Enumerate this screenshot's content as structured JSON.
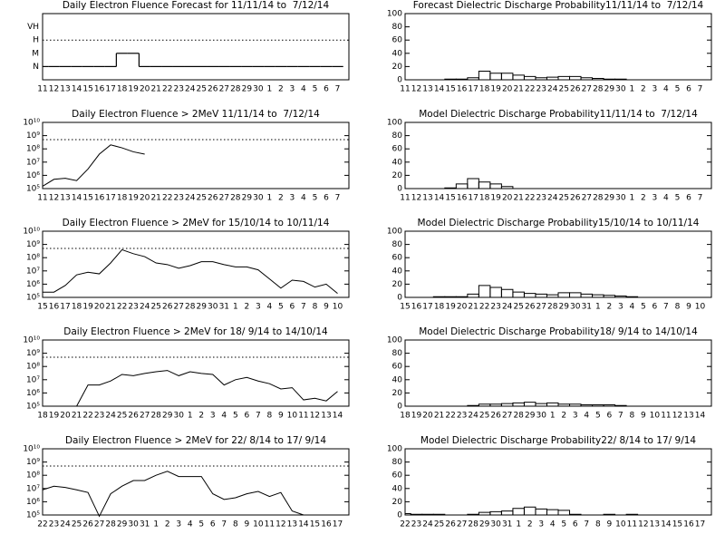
{
  "chart_data": [
    {
      "type": "level-step",
      "title": "Daily Electron Fluence Forecast for 11/11/14 to  7/12/14",
      "categories": [
        "11",
        "12",
        "13",
        "14",
        "15",
        "16",
        "17",
        "18",
        "19",
        "20",
        "21",
        "22",
        "23",
        "24",
        "25",
        "26",
        "27",
        "28",
        "29",
        "30",
        "1",
        "2",
        "3",
        "4",
        "5",
        "6",
        "7"
      ],
      "levels": [
        "N",
        "M",
        "H",
        "VH"
      ],
      "threshold": "H",
      "values": [
        "N",
        "N",
        "N",
        "N",
        "N",
        "N",
        "N",
        "M",
        "M",
        "N",
        "N",
        "N",
        "N",
        "N",
        "N",
        "N",
        "N",
        "N",
        "N",
        "N",
        "N",
        "N",
        "N",
        "N",
        "N",
        "N",
        "N"
      ]
    },
    {
      "type": "histogram",
      "title": "Forecast Dielectric Discharge Probability11/11/14 to  7/12/14",
      "categories": [
        "11",
        "12",
        "13",
        "14",
        "15",
        "16",
        "17",
        "18",
        "19",
        "20",
        "21",
        "22",
        "23",
        "24",
        "25",
        "26",
        "27",
        "28",
        "29",
        "30",
        "1",
        "2",
        "3",
        "4",
        "5",
        "6",
        "7"
      ],
      "values": [
        0,
        0,
        0,
        0,
        1,
        1,
        3,
        13,
        10,
        10,
        7,
        5,
        3,
        4,
        5,
        5,
        3,
        2,
        1,
        1,
        0,
        0,
        0,
        0,
        0,
        0,
        0
      ],
      "ylim": [
        0,
        100
      ],
      "yticks": [
        0,
        20,
        40,
        60,
        80,
        100
      ]
    },
    {
      "type": "line",
      "title": "Daily Electron Fluence > 2MeV 11/11/14 to  7/12/14",
      "log": true,
      "threshold": 500000000,
      "categories": [
        "11",
        "12",
        "13",
        "14",
        "15",
        "16",
        "17",
        "18",
        "19",
        "20",
        "21",
        "22",
        "23",
        "24",
        "25",
        "26",
        "27",
        "28",
        "29",
        "30",
        "1",
        "2",
        "3",
        "4",
        "5",
        "6",
        "7"
      ],
      "values": [
        150000,
        500000,
        600000,
        400000,
        3000000,
        40000000,
        200000000,
        120000000,
        60000000,
        40000000,
        null,
        null,
        null,
        null,
        null,
        null,
        null,
        null,
        null,
        null,
        null,
        null,
        null,
        null,
        null,
        null,
        null
      ],
      "ylim": [
        100000,
        10000000000
      ],
      "yticks": [
        {
          "value": 100000,
          "label": "10⁵"
        },
        {
          "value": 1000000,
          "label": "10⁶"
        },
        {
          "value": 10000000,
          "label": "10⁷"
        },
        {
          "value": 100000000,
          "label": "10⁸"
        },
        {
          "value": 1000000000,
          "label": "10⁹"
        },
        {
          "value": 10000000000,
          "label": "10¹⁰"
        }
      ]
    },
    {
      "type": "histogram",
      "title": "Model Dielectric Discharge Probability11/11/14 to  7/12/14",
      "categories": [
        "11",
        "12",
        "13",
        "14",
        "15",
        "16",
        "17",
        "18",
        "19",
        "20",
        "21",
        "22",
        "23",
        "24",
        "25",
        "26",
        "27",
        "28",
        "29",
        "30",
        "1",
        "2",
        "3",
        "4",
        "5",
        "6",
        "7"
      ],
      "values": [
        0,
        0,
        0,
        0,
        1,
        7,
        15,
        10,
        7,
        3,
        0,
        0,
        0,
        0,
        0,
        0,
        0,
        0,
        0,
        0,
        0,
        0,
        0,
        0,
        0,
        0,
        0
      ],
      "ylim": [
        0,
        100
      ],
      "yticks": [
        0,
        20,
        40,
        60,
        80,
        100
      ]
    },
    {
      "type": "line",
      "title": "Daily Electron Fluence > 2MeV for 15/10/14 to 10/11/14",
      "log": true,
      "threshold": 500000000,
      "categories": [
        "15",
        "16",
        "17",
        "18",
        "19",
        "20",
        "21",
        "22",
        "23",
        "24",
        "25",
        "26",
        "27",
        "28",
        "29",
        "30",
        "31",
        "1",
        "2",
        "3",
        "4",
        "5",
        "6",
        "7",
        "8",
        "9",
        "10"
      ],
      "values": [
        250000,
        250000,
        800000,
        5000000,
        8000000,
        6000000,
        40000000,
        400000000,
        200000000,
        120000000,
        40000000,
        30000000,
        16000000,
        25000000,
        50000000,
        50000000,
        30000000,
        20000000,
        20000000,
        12000000,
        2500000,
        500000,
        2000000,
        1600000,
        600000,
        1000000,
        200000
      ],
      "ylim": [
        100000,
        10000000000
      ],
      "yticks": [
        {
          "value": 100000,
          "label": "10⁵"
        },
        {
          "value": 1000000,
          "label": "10⁶"
        },
        {
          "value": 10000000,
          "label": "10⁷"
        },
        {
          "value": 100000000,
          "label": "10⁸"
        },
        {
          "value": 1000000000,
          "label": "10⁹"
        },
        {
          "value": 10000000000,
          "label": "10¹⁰"
        }
      ]
    },
    {
      "type": "histogram",
      "title": "Model Dielectric Discharge Probability15/10/14 to 10/11/14",
      "categories": [
        "15",
        "16",
        "17",
        "18",
        "19",
        "20",
        "21",
        "22",
        "23",
        "24",
        "25",
        "26",
        "27",
        "28",
        "29",
        "30",
        "31",
        "1",
        "2",
        "3",
        "4",
        "5",
        "6",
        "7",
        "8",
        "9",
        "10"
      ],
      "values": [
        0,
        0,
        0,
        1,
        1,
        1,
        5,
        18,
        15,
        12,
        8,
        6,
        5,
        4,
        7,
        7,
        5,
        4,
        3,
        2,
        1,
        0,
        0,
        0,
        0,
        0,
        0
      ],
      "ylim": [
        0,
        100
      ],
      "yticks": [
        0,
        20,
        40,
        60,
        80,
        100
      ]
    },
    {
      "type": "line",
      "title": "Daily Electron Fluence > 2MeV for 18/ 9/14 to 14/10/14",
      "log": true,
      "threshold": 500000000,
      "categories": [
        "18",
        "19",
        "20",
        "21",
        "22",
        "23",
        "24",
        "25",
        "26",
        "27",
        "28",
        "29",
        "30",
        "1",
        "2",
        "3",
        "4",
        "5",
        "6",
        "7",
        "8",
        "9",
        "10",
        "11",
        "12",
        "13",
        "14"
      ],
      "values": [
        null,
        null,
        null,
        100000,
        4000000,
        4000000,
        8000000,
        25000000,
        20000000,
        30000000,
        40000000,
        50000000,
        20000000,
        40000000,
        30000000,
        25000000,
        4000000,
        10000000,
        15000000,
        8000000,
        5000000,
        2000000,
        2500000,
        300000,
        400000,
        250000,
        1300000
      ],
      "ylim": [
        100000,
        10000000000
      ],
      "yticks": [
        {
          "value": 100000,
          "label": "10⁵"
        },
        {
          "value": 1000000,
          "label": "10⁶"
        },
        {
          "value": 10000000,
          "label": "10⁷"
        },
        {
          "value": 100000000,
          "label": "10⁸"
        },
        {
          "value": 1000000000,
          "label": "10⁹"
        },
        {
          "value": 10000000000,
          "label": "10¹⁰"
        }
      ]
    },
    {
      "type": "histogram",
      "title": "Model Dielectric Discharge Probability18/ 9/14 to 14/10/14",
      "categories": [
        "18",
        "19",
        "20",
        "21",
        "22",
        "23",
        "24",
        "25",
        "26",
        "27",
        "28",
        "29",
        "30",
        "1",
        "2",
        "3",
        "4",
        "5",
        "6",
        "7",
        "8",
        "9",
        "10",
        "11",
        "12",
        "13",
        "14"
      ],
      "values": [
        0,
        0,
        0,
        0,
        0,
        0,
        1,
        3,
        3,
        4,
        5,
        6,
        4,
        5,
        3,
        3,
        2,
        2,
        2,
        1,
        0,
        0,
        0,
        0,
        0,
        0,
        0
      ],
      "ylim": [
        0,
        100
      ],
      "yticks": [
        0,
        20,
        40,
        60,
        80,
        100
      ]
    },
    {
      "type": "line",
      "title": "Daily Electron Fluence > 2MeV for 22/ 8/14 to 17/ 9/14",
      "log": true,
      "threshold": 500000000,
      "categories": [
        "22",
        "23",
        "24",
        "25",
        "26",
        "27",
        "28",
        "29",
        "30",
        "31",
        "1",
        "2",
        "3",
        "4",
        "5",
        "6",
        "7",
        "8",
        "9",
        "10",
        "11",
        "12",
        "13",
        "14",
        "15",
        "16",
        "17"
      ],
      "values": [
        8000000,
        15000000,
        12000000,
        8000000,
        5000000,
        80000,
        4000000,
        15000000,
        40000000,
        40000000,
        100000000,
        200000000,
        80000000,
        80000000,
        80000000,
        4000000,
        1500000,
        2000000,
        4000000,
        6000000,
        2500000,
        5000000,
        200000,
        100000,
        null,
        null,
        null
      ],
      "ylim": [
        100000,
        10000000000
      ],
      "yticks": [
        {
          "value": 100000,
          "label": "10⁵"
        },
        {
          "value": 1000000,
          "label": "10⁶"
        },
        {
          "value": 10000000,
          "label": "10⁷"
        },
        {
          "value": 100000000,
          "label": "10⁸"
        },
        {
          "value": 1000000000,
          "label": "10⁹"
        },
        {
          "value": 10000000000,
          "label": "10¹⁰"
        }
      ]
    },
    {
      "type": "histogram",
      "title": "Model Dielectric Discharge Probability22/ 8/14 to 17/ 9/14",
      "categories": [
        "22",
        "23",
        "24",
        "25",
        "26",
        "27",
        "28",
        "29",
        "30",
        "31",
        "1",
        "2",
        "3",
        "4",
        "5",
        "6",
        "7",
        "8",
        "9",
        "10",
        "11",
        "12",
        "13",
        "14",
        "15",
        "16",
        "17"
      ],
      "values": [
        2,
        1,
        1,
        1,
        0,
        0,
        1,
        4,
        5,
        6,
        10,
        12,
        9,
        8,
        7,
        1,
        0,
        0,
        1,
        0,
        1,
        0,
        0,
        0,
        0,
        0,
        0
      ],
      "ylim": [
        0,
        100
      ],
      "yticks": [
        0,
        20,
        40,
        60,
        80,
        100
      ]
    }
  ]
}
